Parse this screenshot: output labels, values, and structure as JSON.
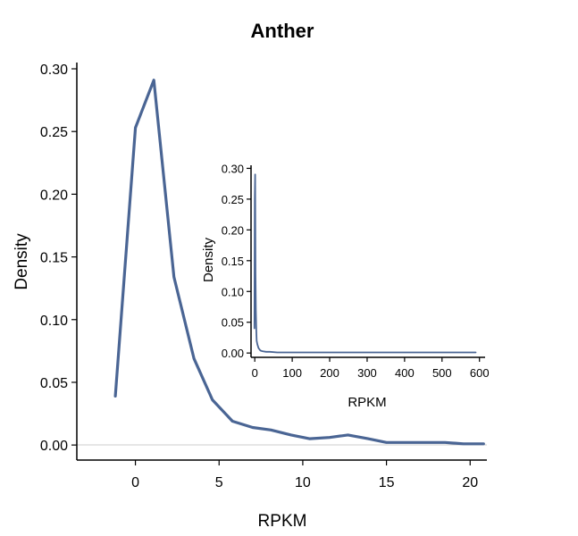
{
  "chart_data": [
    {
      "type": "line",
      "title": "Anther",
      "xlabel": "RPKM",
      "ylabel": "Density",
      "xlim": [
        -3.5,
        21
      ],
      "ylim": [
        -0.012,
        0.305
      ],
      "xticks": [
        0,
        5,
        10,
        15,
        20
      ],
      "xtick_labels": [
        "0",
        "5",
        "10",
        "15",
        "20"
      ],
      "yticks": [
        0.0,
        0.05,
        0.1,
        0.15,
        0.2,
        0.25,
        0.3
      ],
      "ytick_labels": [
        "0.00",
        "0.05",
        "0.10",
        "0.15",
        "0.20",
        "0.25",
        "0.30"
      ],
      "grid": false,
      "reference_line_y": 0,
      "color": "#4a6594",
      "series": [
        {
          "x": [
            -1.2,
            0,
            1.1,
            2.3,
            3.5,
            4.6,
            5.8,
            7,
            8.1,
            9.3,
            10.4,
            11.6,
            12.7,
            13.9,
            15,
            16.2,
            17.3,
            18.5,
            19.6,
            20.8
          ],
          "y": [
            0.039,
            0.253,
            0.291,
            0.134,
            0.069,
            0.036,
            0.019,
            0.014,
            0.012,
            0.008,
            0.005,
            0.006,
            0.008,
            0.005,
            0.002,
            0.002,
            0.002,
            0.002,
            0.001,
            0.001
          ]
        }
      ]
    },
    {
      "type": "line",
      "title": "",
      "xlabel": "RPKM",
      "ylabel": "Density",
      "xlim": [
        -10,
        615
      ],
      "ylim": [
        -0.007,
        0.305
      ],
      "xticks": [
        0,
        100,
        200,
        300,
        400,
        500,
        600
      ],
      "xtick_labels": [
        "0",
        "100",
        "200",
        "300",
        "400",
        "500",
        "600"
      ],
      "yticks": [
        0.0,
        0.05,
        0.1,
        0.15,
        0.2,
        0.25,
        0.3
      ],
      "ytick_labels": [
        "0.00",
        "0.05",
        "0.10",
        "0.15",
        "0.20",
        "0.25",
        "0.30"
      ],
      "grid": false,
      "color": "#4a6594",
      "series": [
        {
          "x": [
            -1,
            0,
            1,
            2,
            3,
            4,
            5,
            7,
            10,
            15,
            20,
            30,
            40,
            60,
            80,
            100,
            150,
            200,
            250,
            300,
            350,
            400,
            450,
            500,
            550,
            590
          ],
          "y": [
            0.04,
            0.25,
            0.29,
            0.13,
            0.07,
            0.036,
            0.02,
            0.014,
            0.008,
            0.004,
            0.003,
            0.002,
            0.002,
            0.001,
            0.001,
            0.001,
            0.001,
            0.001,
            0.001,
            0.001,
            0.001,
            0.001,
            0.001,
            0.001,
            0.001,
            0.001
          ]
        }
      ]
    }
  ]
}
